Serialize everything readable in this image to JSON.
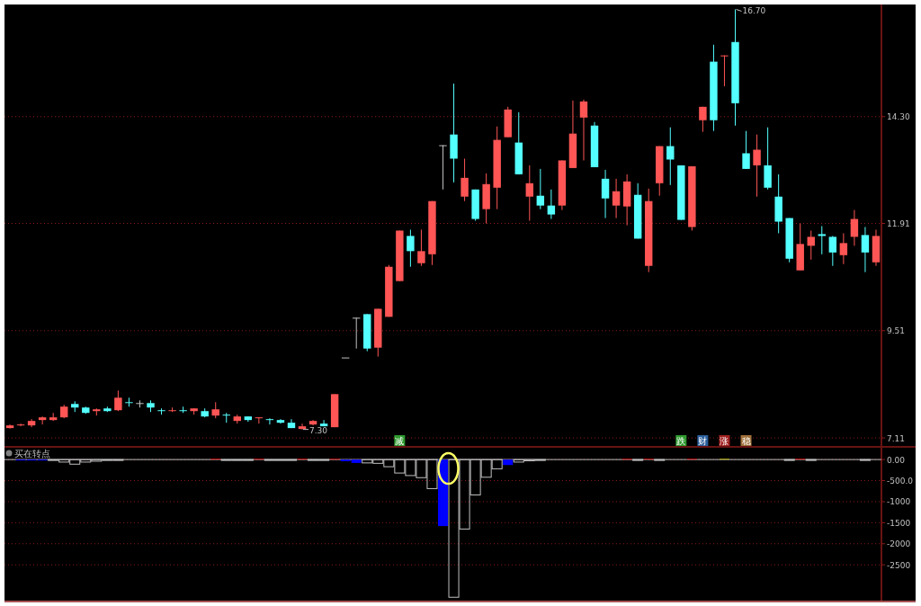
{
  "chart_data": [
    {
      "type": "candlestick",
      "categories": [
        null,
        null,
        null,
        null,
        null,
        null,
        null,
        null,
        null,
        null,
        null,
        null,
        null,
        null,
        null,
        null,
        null,
        null,
        null,
        null,
        null,
        null,
        null,
        null,
        null,
        null,
        null,
        null,
        null,
        null,
        null,
        null,
        null,
        null,
        null,
        null,
        null,
        null,
        null,
        null,
        null,
        null,
        null,
        null,
        null,
        null,
        null,
        null,
        null,
        null,
        null,
        null,
        null,
        null,
        null,
        null,
        null,
        null,
        null,
        null,
        null,
        null,
        null,
        null,
        null,
        null,
        null,
        null,
        null,
        null,
        null,
        null,
        null,
        null,
        null,
        null,
        null,
        null,
        null,
        null,
        null
      ],
      "ohlc": [
        [
          7.33,
          7.41,
          7.32,
          7.39
        ],
        [
          7.39,
          7.43,
          7.37,
          7.41
        ],
        [
          7.39,
          7.53,
          7.35,
          7.49
        ],
        [
          7.51,
          7.59,
          7.41,
          7.57
        ],
        [
          7.51,
          7.67,
          7.49,
          7.57
        ],
        [
          7.57,
          7.85,
          7.55,
          7.81
        ],
        [
          7.87,
          7.93,
          7.69,
          7.79
        ],
        [
          7.79,
          7.81,
          7.65,
          7.67
        ],
        [
          7.71,
          7.77,
          7.61,
          7.75
        ],
        [
          7.77,
          7.81,
          7.69,
          7.71
        ],
        [
          7.73,
          8.17,
          7.71,
          8.01
        ],
        [
          7.91,
          8.01,
          7.81,
          7.91
        ],
        [
          7.89,
          7.95,
          7.79,
          7.89
        ],
        [
          7.89,
          7.95,
          7.69,
          7.79
        ],
        [
          7.73,
          7.77,
          7.63,
          7.73
        ],
        [
          7.73,
          7.79,
          7.69,
          7.73
        ],
        [
          7.73,
          7.81,
          7.67,
          7.73
        ],
        [
          7.71,
          7.77,
          7.63,
          7.77
        ],
        [
          7.71,
          7.77,
          7.57,
          7.59
        ],
        [
          7.61,
          7.91,
          7.55,
          7.75
        ],
        [
          7.63,
          7.67,
          7.45,
          7.63
        ],
        [
          7.49,
          7.63,
          7.43,
          7.59
        ],
        [
          7.59,
          7.59,
          7.47,
          7.51
        ],
        [
          7.57,
          7.57,
          7.43,
          7.57
        ],
        [
          7.53,
          7.55,
          7.41,
          7.53
        ],
        [
          7.51,
          7.53,
          7.43,
          7.45
        ],
        [
          7.45,
          7.53,
          7.33,
          7.33
        ],
        [
          7.31,
          7.43,
          7.3,
          7.37
        ],
        [
          7.41,
          7.51,
          7.39,
          7.49
        ],
        [
          7.43,
          7.51,
          7.37,
          7.37
        ],
        [
          7.35,
          8.09,
          7.35,
          8.09
        ],
        [
          8.91,
          8.91,
          8.91,
          8.91
        ],
        [
          9.8,
          9.8,
          9.11,
          9.8
        ],
        [
          9.88,
          9.88,
          9.05,
          9.11
        ],
        [
          9.13,
          10.0,
          8.93,
          10.0
        ],
        [
          9.82,
          10.98,
          9.82,
          10.94
        ],
        [
          10.62,
          11.75,
          10.62,
          11.75
        ],
        [
          11.63,
          11.77,
          10.94,
          11.29
        ],
        [
          11.02,
          11.77,
          10.96,
          11.29
        ],
        [
          11.22,
          12.41,
          10.98,
          12.41
        ],
        [
          13.66,
          13.66,
          12.67,
          13.66
        ],
        [
          13.9,
          15.04,
          12.83,
          13.36
        ],
        [
          12.51,
          13.36,
          12.41,
          12.93
        ],
        [
          12.67,
          12.67,
          11.97,
          12.01
        ],
        [
          12.23,
          13.03,
          11.91,
          12.79
        ],
        [
          12.71,
          14.08,
          12.23,
          13.78
        ],
        [
          13.84,
          14.52,
          13.84,
          14.46
        ],
        [
          13.72,
          14.4,
          13.01,
          13.01
        ],
        [
          12.51,
          13.21,
          11.97,
          12.81
        ],
        [
          12.53,
          13.13,
          12.23,
          12.31
        ],
        [
          12.31,
          12.67,
          12.01,
          12.11
        ],
        [
          12.31,
          13.32,
          12.21,
          13.32
        ],
        [
          13.15,
          14.66,
          13.15,
          13.92
        ],
        [
          14.28,
          14.68,
          13.32,
          14.64
        ],
        [
          14.1,
          14.18,
          13.17,
          13.17
        ],
        [
          12.91,
          13.11,
          12.03,
          12.47
        ],
        [
          12.31,
          12.91,
          12.03,
          12.63
        ],
        [
          12.29,
          13.01,
          11.87,
          12.85
        ],
        [
          12.55,
          12.81,
          11.57,
          11.57
        ],
        [
          10.96,
          12.69,
          10.82,
          12.41
        ],
        [
          12.81,
          13.64,
          12.53,
          13.64
        ],
        [
          13.64,
          14.06,
          12.77,
          13.34
        ],
        [
          13.21,
          13.21,
          11.99,
          11.99
        ],
        [
          11.83,
          13.19,
          11.75,
          13.19
        ],
        [
          14.22,
          14.52,
          13.96,
          14.52
        ],
        [
          15.53,
          15.91,
          13.98,
          14.22
        ],
        [
          15.67,
          15.67,
          14.98,
          15.67
        ],
        [
          15.97,
          16.7,
          14.1,
          14.6
        ],
        [
          13.48,
          13.98,
          13.13,
          13.13
        ],
        [
          13.21,
          13.9,
          12.51,
          13.56
        ],
        [
          13.21,
          14.06,
          12.67,
          12.71
        ],
        [
          12.51,
          13.01,
          11.69,
          11.95
        ],
        [
          12.03,
          12.03,
          11.04,
          11.12
        ],
        [
          10.86,
          11.91,
          10.86,
          11.45
        ],
        [
          11.41,
          11.75,
          11.1,
          11.61
        ],
        [
          11.67,
          11.85,
          11.22,
          11.63
        ],
        [
          11.61,
          11.63,
          10.96,
          11.26
        ],
        [
          11.2,
          11.69,
          11.0,
          11.47
        ],
        [
          11.61,
          12.21,
          11.41,
          12.01
        ],
        [
          11.65,
          11.83,
          10.82,
          11.26
        ],
        [
          11.04,
          11.77,
          10.96,
          11.63
        ]
      ],
      "colors": [
        "#ff5555",
        "#ff5555",
        "#ff5555",
        "#ff5555",
        "#ff5555",
        "#ff5555",
        "#54ffff",
        "#54ffff",
        "#ff5555",
        "#54ffff",
        "#ff5555",
        "#54ffff",
        "#c0c0c0",
        "#54ffff",
        "#54ffff",
        "#ff5555",
        "#54ffff",
        "#ff5555",
        "#54ffff",
        "#ff5555",
        "#54ffff",
        "#ff5555",
        "#54ffff",
        "#ff5555",
        "#54ffff",
        "#54ffff",
        "#54ffff",
        "#ff5555",
        "#ff5555",
        "#54ffff",
        "#ff5555",
        "#c0c0c0",
        "#c0c0c0",
        "#54ffff",
        "#ff5555",
        "#ff5555",
        "#ff5555",
        "#54ffff",
        "#ff5555",
        "#ff5555",
        "#c0c0c0",
        "#54ffff",
        "#ff5555",
        "#54ffff",
        "#ff5555",
        "#ff5555",
        "#ff5555",
        "#54ffff",
        "#ff5555",
        "#54ffff",
        "#54ffff",
        "#ff5555",
        "#ff5555",
        "#ff5555",
        "#54ffff",
        "#54ffff",
        "#ff5555",
        "#ff5555",
        "#54ffff",
        "#ff5555",
        "#ff5555",
        "#54ffff",
        "#54ffff",
        "#ff5555",
        "#ff5555",
        "#54ffff",
        "#ff5555",
        "#54ffff",
        "#54ffff",
        "#ff5555",
        "#54ffff",
        "#54ffff",
        "#54ffff",
        "#ff5555",
        "#ff5555",
        "#54ffff",
        "#54ffff",
        "#ff5555",
        "#ff5555",
        "#54ffff",
        "#ff5555"
      ],
      "ylim": [
        6.93,
        16.81
      ],
      "yticks": [
        7.11,
        9.51,
        11.91,
        {
          "value": 14.3,
          "label": "14.30"
        }
      ],
      "grid": "y",
      "annotations": [
        "16.70",
        "7.30",
        "减",
        "跌",
        "财",
        "涨",
        "稳"
      ]
    },
    {
      "type": "bar",
      "title": "买在转点",
      "categories": [
        null,
        null,
        null,
        null,
        null,
        null,
        null,
        null,
        null,
        null,
        null,
        null,
        null,
        null,
        null,
        null,
        null,
        null,
        null,
        null,
        null,
        null,
        null,
        null,
        null,
        null,
        null,
        null,
        null,
        null,
        null,
        null,
        null,
        null,
        null,
        null,
        null,
        null,
        null,
        null,
        null,
        null,
        null,
        null,
        null,
        null,
        null,
        null,
        null,
        null,
        null,
        null,
        null,
        null,
        null,
        null,
        null,
        null,
        null,
        null,
        null,
        null,
        null,
        null,
        null,
        null,
        null,
        null,
        null,
        null,
        null,
        null,
        null,
        null,
        null,
        null,
        null,
        null,
        null,
        null,
        null
      ],
      "series": [
        {
          "color": "#0000ff",
          "values": [
            null,
            -20,
            -20,
            -20,
            null,
            null,
            null,
            null,
            null,
            null,
            null,
            null,
            null,
            null,
            null,
            null,
            null,
            null,
            null,
            null,
            null,
            null,
            null,
            null,
            null,
            null,
            null,
            null,
            null,
            null,
            null,
            -40,
            -80,
            null,
            null,
            null,
            null,
            null,
            null,
            null,
            -1580,
            null,
            null,
            null,
            null,
            null,
            -130,
            null,
            null,
            null,
            null,
            null,
            null,
            null,
            null,
            null,
            null,
            null,
            null,
            null,
            null,
            null,
            null,
            null,
            null,
            null,
            null,
            null,
            null,
            null,
            null,
            null,
            null,
            null,
            null,
            null,
            null,
            null,
            null,
            null,
            null
          ]
        },
        {
          "color": "#c00000",
          "values": [
            null,
            null,
            null,
            null,
            null,
            null,
            null,
            null,
            null,
            null,
            null,
            null,
            null,
            null,
            null,
            null,
            null,
            null,
            null,
            20,
            null,
            null,
            null,
            20,
            null,
            null,
            null,
            20,
            null,
            null,
            20,
            null,
            null,
            null,
            null,
            null,
            null,
            null,
            null,
            null,
            null,
            null,
            null,
            null,
            null,
            null,
            null,
            null,
            null,
            null,
            null,
            null,
            null,
            null,
            null,
            null,
            null,
            20,
            null,
            20,
            null,
            null,
            null,
            20,
            null,
            null,
            null,
            null,
            null,
            null,
            null,
            null,
            null,
            20,
            null,
            null,
            null,
            null,
            null,
            null,
            null
          ]
        },
        {
          "color": "#a0a000",
          "values": [
            null,
            null,
            null,
            null,
            null,
            null,
            null,
            null,
            null,
            null,
            null,
            null,
            null,
            null,
            null,
            null,
            null,
            null,
            null,
            null,
            null,
            null,
            null,
            null,
            null,
            null,
            null,
            null,
            null,
            null,
            null,
            null,
            null,
            null,
            null,
            null,
            null,
            null,
            null,
            null,
            null,
            null,
            null,
            null,
            null,
            null,
            null,
            null,
            null,
            null,
            null,
            null,
            null,
            null,
            null,
            null,
            null,
            null,
            null,
            null,
            null,
            null,
            null,
            null,
            null,
            null,
            20,
            null,
            null,
            null,
            null,
            null,
            null,
            null,
            null,
            null,
            null,
            null,
            null,
            null,
            null
          ]
        },
        {
          "color": "#c0c0c0",
          "values": [
            null,
            null,
            null,
            null,
            -20,
            -60,
            -110,
            -60,
            -40,
            -20,
            -20,
            null,
            null,
            null,
            null,
            null,
            null,
            null,
            null,
            null,
            -20,
            -20,
            -20,
            null,
            -20,
            -20,
            -20,
            null,
            -20,
            -20,
            null,
            null,
            null,
            -80,
            -90,
            -170,
            -320,
            -380,
            -430,
            -690,
            null,
            -3270,
            -1650,
            -840,
            -420,
            -220,
            null,
            -60,
            -30,
            -20,
            null,
            null,
            null,
            null,
            null,
            null,
            null,
            null,
            -20,
            null,
            -20,
            null,
            null,
            null,
            null,
            null,
            null,
            null,
            null,
            null,
            null,
            null,
            -20,
            null,
            -20,
            null,
            null,
            null,
            null,
            -20,
            null
          ]
        }
      ],
      "ylim": [
        -3350,
        280
      ],
      "yticks": [
        {
          "value": 0,
          "label": "0.00"
        },
        {
          "value": -500,
          "label": "-500.0"
        },
        -1000,
        -1500,
        -2000,
        -2500
      ],
      "grid": "y",
      "ref_lines": [
        {
          "axis": "y",
          "value": 0,
          "color": "#c0c0c0"
        }
      ]
    }
  ]
}
